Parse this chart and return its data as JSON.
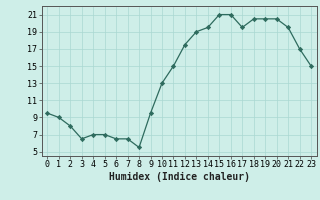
{
  "x": [
    0,
    1,
    2,
    3,
    4,
    5,
    6,
    7,
    8,
    9,
    10,
    11,
    12,
    13,
    14,
    15,
    16,
    17,
    18,
    19,
    20,
    21,
    22,
    23
  ],
  "y": [
    9.5,
    9.0,
    8.0,
    6.5,
    7.0,
    7.0,
    6.5,
    6.5,
    5.5,
    9.5,
    13.0,
    15.0,
    17.5,
    19.0,
    19.5,
    21.0,
    21.0,
    19.5,
    20.5,
    20.5,
    20.5,
    19.5,
    17.0,
    15.0
  ],
  "line_color": "#2e6b5e",
  "marker": "D",
  "marker_size": 2.2,
  "linewidth": 0.9,
  "xlabel": "Humidex (Indice chaleur)",
  "bg_color": "#ceeee8",
  "grid_color": "#aad8d2",
  "xlim": [
    -0.5,
    23.5
  ],
  "ylim": [
    4.5,
    22
  ],
  "yticks": [
    5,
    7,
    9,
    11,
    13,
    15,
    17,
    19,
    21
  ],
  "xticks": [
    0,
    1,
    2,
    3,
    4,
    5,
    6,
    7,
    8,
    9,
    10,
    11,
    12,
    13,
    14,
    15,
    16,
    17,
    18,
    19,
    20,
    21,
    22,
    23
  ],
  "xlabel_fontsize": 7,
  "tick_fontsize": 6
}
